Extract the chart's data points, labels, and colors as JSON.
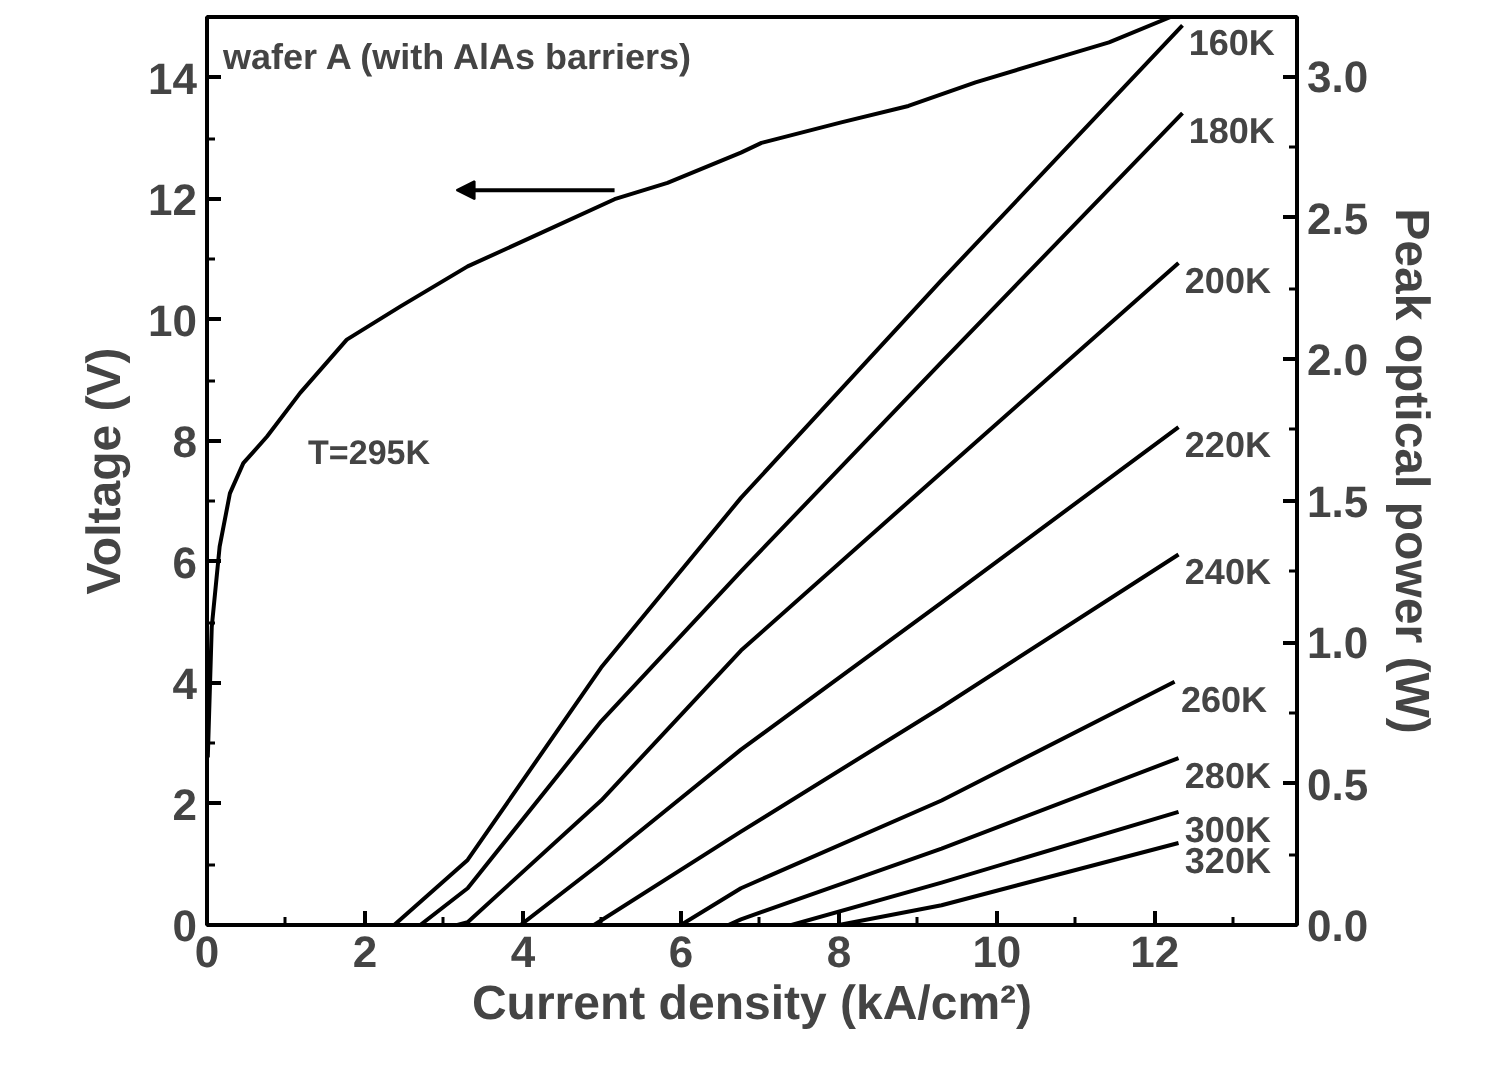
{
  "chart_data": {
    "type": "line",
    "xlabel": "Current density (kA/cm²)",
    "ylabel": "Voltage (V)",
    "y2label": "Peak optical power (W)",
    "annotations": [
      "wafer A (with AlAs barriers)"
    ],
    "xlim": [
      0,
      13.8
    ],
    "xticks": [
      0,
      {
        "value": 1,
        "label": null
      },
      2,
      {
        "value": 3,
        "label": null
      },
      4,
      {
        "value": 5,
        "label": null
      },
      6,
      {
        "value": 7,
        "label": null
      },
      8,
      {
        "value": 9,
        "label": null
      },
      10,
      {
        "value": 11,
        "label": null
      },
      12,
      {
        "value": 13,
        "label": null
      }
    ],
    "ylim": [
      0,
      15
    ],
    "yticks": [
      0,
      {
        "value": 1,
        "label": null
      },
      2,
      {
        "value": 3,
        "label": null
      },
      4,
      {
        "value": 5,
        "label": null
      },
      6,
      {
        "value": 7,
        "label": null
      },
      8,
      {
        "value": 9,
        "label": null
      },
      10,
      {
        "value": 11,
        "label": null
      },
      12,
      {
        "value": 13,
        "label": null
      },
      14
    ],
    "y2lim": [
      0,
      3.21
    ],
    "y2ticks": [
      {
        "value": 0,
        "label": "0.0"
      },
      {
        "value": 0.25,
        "label": null
      },
      {
        "value": 0.5,
        "label": "0.5"
      },
      {
        "value": 0.75,
        "label": null
      },
      {
        "value": 1,
        "label": "1.0"
      },
      {
        "value": 1.25,
        "label": null
      },
      {
        "value": 1.5,
        "label": "1.5"
      },
      {
        "value": 1.75,
        "label": null
      },
      {
        "value": 2,
        "label": "2.0"
      },
      {
        "value": 2.25,
        "label": null
      },
      {
        "value": 2.5,
        "label": "2.5"
      },
      {
        "value": 2.75,
        "label": null
      },
      {
        "value": 3,
        "label": "3.0"
      }
    ],
    "grid": false,
    "legend": "right",
    "marker": "none",
    "line_style": "solid",
    "series": [
      {
        "name": "T=295K",
        "color": "#000000",
        "x": [
          0.01,
          0.06,
          0.16,
          0.29,
          0.46,
          0.76,
          1.18,
          1.77,
          2.45,
          3.3,
          4.14,
          5.16,
          5.83,
          6.76,
          7.02,
          8.03,
          8.88,
          9.73,
          10.57,
          11.42,
          12.2
        ],
        "values": [
          2.77,
          4.92,
          6.25,
          7.13,
          7.63,
          8.07,
          8.79,
          9.67,
          10.22,
          10.88,
          11.38,
          11.99,
          12.26,
          12.76,
          12.92,
          13.26,
          13.53,
          13.92,
          14.25,
          14.58,
          15.0
        ]
      },
      {
        "name": "160K",
        "color": "#000000",
        "axis": "y2",
        "x": [
          2.37,
          3.3,
          4.99,
          6.76,
          9.3,
          12.35
        ],
        "values": [
          0,
          0.23,
          0.91,
          1.51,
          2.28,
          3.18
        ]
      },
      {
        "name": "180K",
        "color": "#000000",
        "axis": "y2",
        "x": [
          2.7,
          3.3,
          4.99,
          6.76,
          9.3,
          12.35
        ],
        "values": [
          0,
          0.13,
          0.72,
          1.25,
          1.99,
          2.87
        ]
      },
      {
        "name": "200K",
        "color": "#000000",
        "axis": "y2",
        "x": [
          3.17,
          3.3,
          4.99,
          6.76,
          9.3,
          12.3
        ],
        "values": [
          0,
          0.01,
          0.44,
          0.97,
          1.6,
          2.34
        ]
      },
      {
        "name": "220K",
        "color": "#000000",
        "axis": "y2",
        "x": [
          3.97,
          4.99,
          6.76,
          9.3,
          12.3
        ],
        "values": [
          0,
          0.22,
          0.62,
          1.14,
          1.76
        ]
      },
      {
        "name": "240K",
        "color": "#000000",
        "axis": "y2",
        "x": [
          4.9,
          6.76,
          9.3,
          12.3
        ],
        "values": [
          0,
          0.33,
          0.77,
          1.31
        ]
      },
      {
        "name": "260K",
        "color": "#000000",
        "axis": "y2",
        "x": [
          6.0,
          6.76,
          9.3,
          12.25
        ],
        "values": [
          0,
          0.13,
          0.44,
          0.86
        ]
      },
      {
        "name": "280K",
        "color": "#000000",
        "axis": "y2",
        "x": [
          6.6,
          6.76,
          9.3,
          12.3
        ],
        "values": [
          0,
          0.02,
          0.27,
          0.59
        ]
      },
      {
        "name": "300K",
        "color": "#000000",
        "axis": "y2",
        "x": [
          7.4,
          9.3,
          12.3
        ],
        "values": [
          0,
          0.15,
          0.4
        ]
      },
      {
        "name": "320K",
        "color": "#000000",
        "axis": "y2",
        "x": [
          8.0,
          9.3,
          12.3
        ],
        "values": [
          0,
          0.07,
          0.29
        ]
      }
    ]
  }
}
